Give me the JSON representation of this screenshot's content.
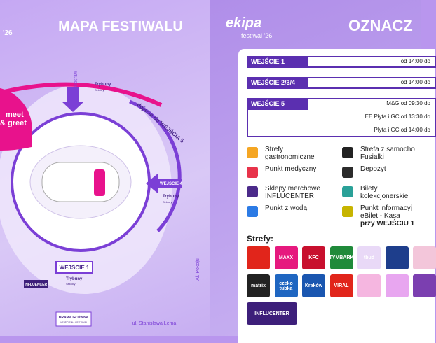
{
  "left": {
    "year": "'26",
    "title": "MAPA FESTIWALU",
    "meet": "meet",
    "greet": "& greet",
    "gate3": "WEJŚCIE 3",
    "stands_top": {
      "label": "Trybuny",
      "sectors": "Sektory"
    },
    "walk5": "dojście do WEJŚCIA 5",
    "gate4": "WEJŚCIE 4",
    "stands_right": {
      "label": "Trybuny",
      "sectors": "Sektory"
    },
    "gate1": "WEJŚCIE 1",
    "stands_bottom": {
      "label": "Trybuny",
      "sectors": "Sektory"
    },
    "influencer": "INFLUENCER",
    "main_gate": "BRAMA GŁÓWNA",
    "main_gate_sub": "WEJŚCIE NA FESTIWAL",
    "street": "ul. Stanisława Lema",
    "avenue": "Al. Pokoju"
  },
  "right": {
    "logo": "ekipa",
    "logo_sub": "festiwal '26",
    "title": "OZNACZ",
    "entrances": [
      {
        "name": "WEJŚCIE 1",
        "times": [
          "od 14:00 do"
        ]
      },
      {
        "name": "WEJŚCIE 2/3/4",
        "times": [
          "od 14:00 do"
        ]
      },
      {
        "name": "WEJŚCIE 5",
        "times": [
          "M&G od 09:30 do",
          "EE Płyta i GC od 13:30 do",
          "Płyta i GC od 14:00 do"
        ]
      }
    ],
    "legend": [
      {
        "lines": [
          "Strefy",
          "gastronomiczne"
        ],
        "color": "#f5a623"
      },
      {
        "lines": [
          "Strefa z samocho",
          "Fusialki"
        ],
        "color": "#222222"
      },
      {
        "lines": [
          "Punkt medyczny"
        ],
        "color": "#e8334a"
      },
      {
        "lines": [
          "Depozyt"
        ],
        "color": "#2b2b2b"
      },
      {
        "lines": [
          "Sklepy merchowe",
          "INFLUCENTER"
        ],
        "color": "#4b2a8a"
      },
      {
        "lines": [
          "Bilety",
          "kolekcjonerskie"
        ],
        "color": "#2aa198"
      },
      {
        "lines": [
          "Punkt z wodą"
        ],
        "color": "#2c7be5"
      },
      {
        "lines": [
          "Punkt informacyj",
          "eBilet - Kasa",
          "przy WEJŚCIU 1"
        ],
        "color": "#c7b400"
      }
    ],
    "zones_title": "Strefy:",
    "zones": [
      {
        "label": "",
        "color": "#e1251b"
      },
      {
        "label": "MAXX",
        "color": "#e6197e"
      },
      {
        "label": "KFC",
        "color": "#c8102e"
      },
      {
        "label": "TYMBARK",
        "color": "#1f8a3a"
      },
      {
        "label": "tbud",
        "color": "#e9d9f7"
      },
      {
        "label": "",
        "color": "#1e3e8c"
      },
      {
        "label": "",
        "color": "#f3c6da"
      },
      {
        "label": "matrix",
        "color": "#222222"
      },
      {
        "label": "czeko tubka",
        "color": "#1f66c1"
      },
      {
        "label": "Kraków",
        "color": "#1a56b0"
      },
      {
        "label": "VIRAL",
        "color": "#e1251b"
      },
      {
        "label": "",
        "color": "#f5b6e0"
      },
      {
        "label": "",
        "color": "#e8a6f0"
      },
      {
        "label": "",
        "color": "#7b3fb0"
      },
      {
        "label": "INFLUCENTER",
        "color": "#3d1f7a"
      }
    ]
  }
}
